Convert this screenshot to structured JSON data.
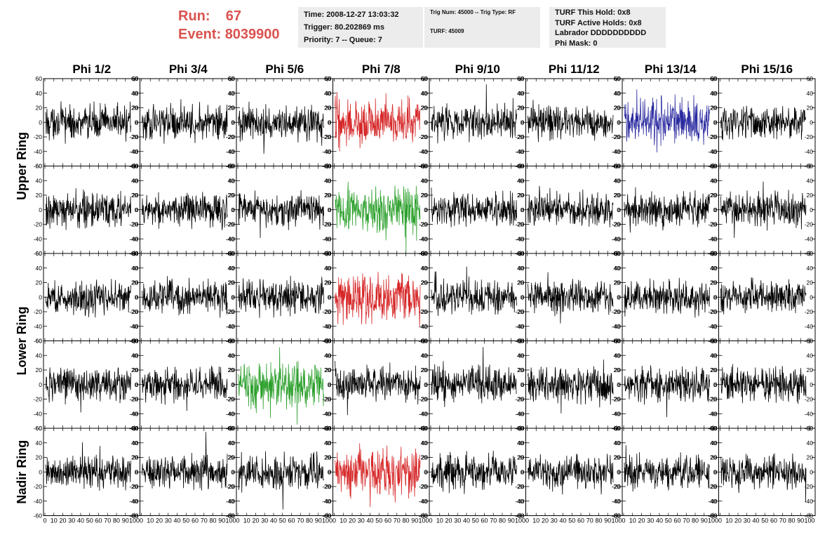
{
  "header": {
    "run_label": "Run:",
    "run_value": "67",
    "event_label": "Event:",
    "event_value": "8039900",
    "time_text": "Time: 2008-12-27 13:03:32",
    "trigger_text": "Trigger: 80.202869 ms",
    "priority_text": "Priority: 7 -- Queue: 7",
    "trig_num_text": "Trig Num: 45000 -- Trig Type: RF",
    "turf_text": "TURF: 45009",
    "turf_this_hold": "TURF This Hold: 0x8",
    "turf_active_holds": "TURF Active Holds: 0x8",
    "labrador": "Labrador DDDDDDDDDD",
    "phi_mask": "Phi Mask: 0"
  },
  "chart_data": {
    "type": "line",
    "title": "",
    "columns": [
      "Phi 1/2",
      "Phi 3/4",
      "Phi 5/6",
      "Phi 7/8",
      "Phi 9/10",
      "Phi 11/12",
      "Phi 13/14",
      "Phi 15/16"
    ],
    "ring_labels": [
      {
        "name": "Upper Ring",
        "rows": [
          0,
          1
        ]
      },
      {
        "name": "Lower Ring",
        "rows": [
          2,
          3
        ]
      },
      {
        "name": "Nadir Ring",
        "rows": [
          4
        ]
      }
    ],
    "rows": 5,
    "ylim": [
      -60,
      60
    ],
    "y_ticks": [
      -60,
      -40,
      -20,
      0,
      20,
      40,
      60
    ],
    "xlim": [
      0,
      100
    ],
    "x_ticks": [
      0,
      10,
      20,
      30,
      40,
      50,
      60,
      70,
      80,
      90,
      100
    ],
    "samples": 260,
    "default_color": "#000000",
    "highlighted": [
      {
        "row": 0,
        "col": 3,
        "color": "#d62728"
      },
      {
        "row": 0,
        "col": 6,
        "color": "#2a2aa0"
      },
      {
        "row": 1,
        "col": 3,
        "color": "#2ca02c"
      },
      {
        "row": 2,
        "col": 3,
        "color": "#d62728"
      },
      {
        "row": 3,
        "col": 2,
        "color": "#2ca02c"
      },
      {
        "row": 4,
        "col": 3,
        "color": "#d62728"
      }
    ]
  }
}
